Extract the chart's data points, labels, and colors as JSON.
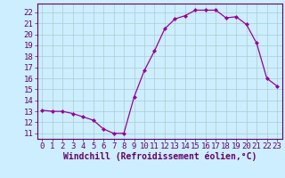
{
  "hours": [
    0,
    1,
    2,
    3,
    4,
    5,
    6,
    7,
    8,
    9,
    10,
    11,
    12,
    13,
    14,
    15,
    16,
    17,
    18,
    19,
    20,
    21,
    22,
    23
  ],
  "windchill": [
    13.1,
    13.0,
    13.0,
    12.8,
    12.5,
    12.2,
    11.4,
    11.0,
    11.0,
    14.3,
    16.7,
    18.5,
    20.5,
    21.4,
    21.7,
    22.2,
    22.2,
    22.2,
    21.5,
    21.6,
    20.9,
    19.2,
    16.0,
    15.3
  ],
  "xlabel": "Windchill (Refroidissement éolien,°C)",
  "ylim": [
    10.5,
    22.8
  ],
  "xlim": [
    -0.5,
    23.5
  ],
  "yticks": [
    11,
    12,
    13,
    14,
    15,
    16,
    17,
    18,
    19,
    20,
    21,
    22
  ],
  "xticks": [
    0,
    1,
    2,
    3,
    4,
    5,
    6,
    7,
    8,
    9,
    10,
    11,
    12,
    13,
    14,
    15,
    16,
    17,
    18,
    19,
    20,
    21,
    22,
    23
  ],
  "line_color": "#990099",
  "marker": "D",
  "marker_size": 2.0,
  "bg_color": "#cceeff",
  "grid_color": "#aacccc",
  "xlabel_color": "#660066",
  "tick_color": "#660066",
  "spine_color": "#660066",
  "axis_label_fontsize": 6.5,
  "xlabel_fontsize": 7.0
}
